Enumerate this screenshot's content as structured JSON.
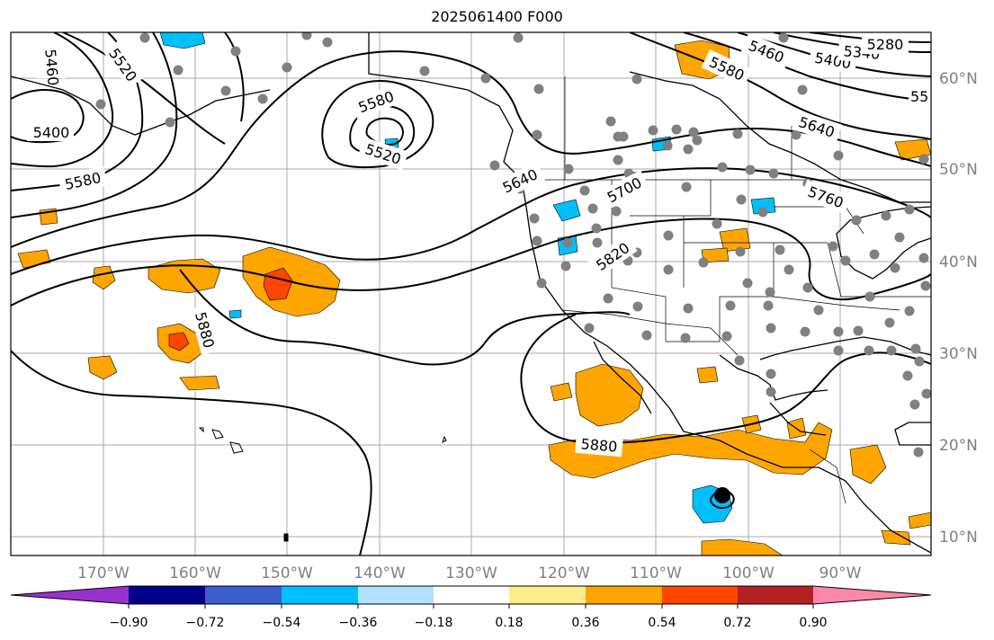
{
  "title": "2025061400 F000",
  "map": {
    "lon_labels": [
      "170°W",
      "160°W",
      "150°W",
      "140°W",
      "130°W",
      "120°W",
      "110°W",
      "100°W",
      "90°W"
    ],
    "lat_labels": [
      "60°N",
      "50°N",
      "40°N",
      "30°N",
      "20°N",
      "10°N"
    ],
    "contour_labels": [
      "5460",
      "5520",
      "5400",
      "5580",
      "5580",
      "5520",
      "5640",
      "5700",
      "5760",
      "5820",
      "5880",
      "5880",
      "5580",
      "5460",
      "5400",
      "5340",
      "5280",
      "5640",
      "55"
    ],
    "colors": {
      "contour": "#000000",
      "grid": "#a0a0a0",
      "coast": "#000000",
      "station": "#808080"
    }
  },
  "colorbar": {
    "ticks": [
      "−0.90",
      "−0.72",
      "−0.54",
      "−0.36",
      "−0.18",
      "0.18",
      "0.36",
      "0.54",
      "0.72",
      "0.90"
    ],
    "colors": [
      "#9932cc",
      "#00008b",
      "#3a5fcd",
      "#00bfff",
      "#b0e2ff",
      "#ffffff",
      "#ffec8b",
      "#ffa500",
      "#ff4500",
      "#b22222",
      "#ff88aa"
    ]
  }
}
